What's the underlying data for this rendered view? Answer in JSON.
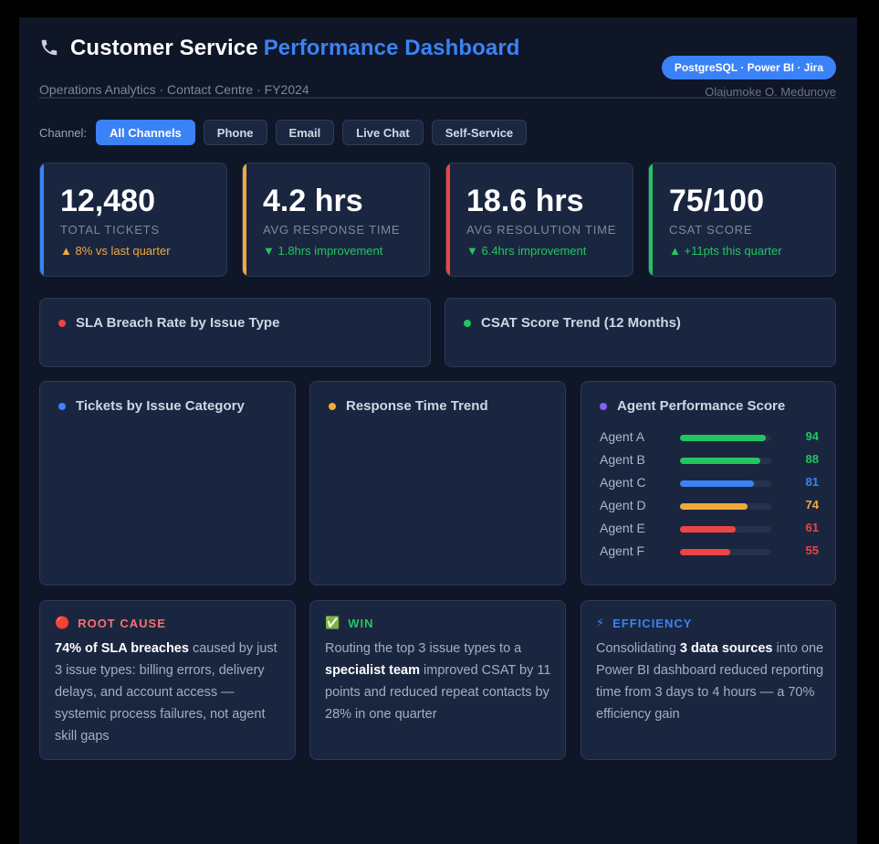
{
  "header": {
    "icon": "phone-icon",
    "title_main": "Customer Service",
    "title_accent": "Performance Dashboard",
    "subtitle": "Operations Analytics · Contact Centre · FY2024",
    "tech_badge": "PostgreSQL · Power BI · Jira",
    "author": "Olajumoke O. Medunoye"
  },
  "filters": {
    "label": "Channel:",
    "options": [
      "All Channels",
      "Phone",
      "Email",
      "Live Chat",
      "Self-Service"
    ],
    "selected": "All Channels"
  },
  "kpis": [
    {
      "value": "12,480",
      "label": "TOTAL TICKETS",
      "delta": "▲ 8% vs last quarter",
      "accent": "#3b82f6",
      "delta_color": "#f2a93b"
    },
    {
      "value": "4.2 hrs",
      "label": "AVG RESPONSE TIME",
      "delta": "▼ 1.8hrs improvement",
      "accent": "#f2a93b",
      "delta_color": "#22c55e"
    },
    {
      "value": "18.6 hrs",
      "label": "AVG RESOLUTION TIME",
      "delta": "▼ 6.4hrs improvement",
      "accent": "#ef4444",
      "delta_color": "#22c55e"
    },
    {
      "value": "75/100",
      "label": "CSAT SCORE",
      "delta": "▲ +11pts this quarter",
      "accent": "#22c55e",
      "delta_color": "#22c55e"
    }
  ],
  "panels": {
    "sla": {
      "title": "SLA Breach Rate by Issue Type",
      "dot": "#ef4444"
    },
    "csat_trend": {
      "title": "CSAT Score Trend (12 Months)",
      "dot": "#22c55e"
    },
    "tickets": {
      "title": "Tickets by Issue Category",
      "dot": "#3b82f6"
    },
    "response": {
      "title": "Response Time Trend",
      "dot": "#f2a93b"
    },
    "agents": {
      "title": "Agent Performance Score",
      "dot": "#8b5cf6"
    }
  },
  "agents": [
    {
      "name": "Agent A",
      "score": 94,
      "color": "#22c55e"
    },
    {
      "name": "Agent B",
      "score": 88,
      "color": "#22c55e"
    },
    {
      "name": "Agent C",
      "score": 81,
      "color": "#3b82f6"
    },
    {
      "name": "Agent D",
      "score": 74,
      "color": "#f2a93b"
    },
    {
      "name": "Agent E",
      "score": 61,
      "color": "#ef4444"
    },
    {
      "name": "Agent F",
      "score": 55,
      "color": "#ef4444"
    }
  ],
  "insights": [
    {
      "icon": "red-circle-icon",
      "glyph": "🔴",
      "title": "ROOT CAUSE",
      "title_color": "#f87171",
      "bold": "74% of SLA breaches",
      "prefix": "",
      "suffix": " caused by just 3 issue types: billing errors, delivery delays, and account access — systemic process failures, not agent skill gaps"
    },
    {
      "icon": "check-icon",
      "glyph": "✅",
      "title": "WIN",
      "title_color": "#22c55e",
      "prefix": "Routing the top 3 issue types to a ",
      "bold": "specialist team",
      "suffix": " improved CSAT by 11 points and reduced repeat contacts by 28% in one quarter"
    },
    {
      "icon": "lightning-icon",
      "glyph": "⚡",
      "title": "EFFICIENCY",
      "title_color": "#3b82f6",
      "prefix": "Consolidating ",
      "bold": "3 data sources",
      "suffix": " into one Power BI dashboard reduced reporting time from 3 days to 4 hours — a 70% efficiency gain"
    }
  ]
}
